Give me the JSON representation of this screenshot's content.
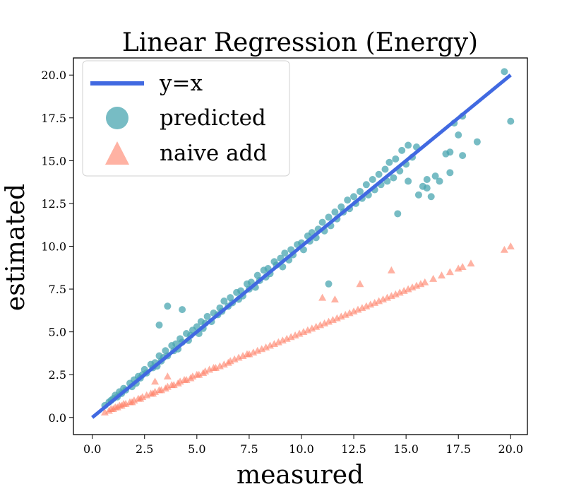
{
  "chart_data": {
    "type": "scatter",
    "title": "Linear Regression (Energy)",
    "xlabel": "measured",
    "ylabel": "estimated",
    "xlim": [
      -0.9,
      20.8
    ],
    "ylim": [
      -1.0,
      21.0
    ],
    "xticks": [
      0.0,
      2.5,
      5.0,
      7.5,
      10.0,
      12.5,
      15.0,
      17.5,
      20.0
    ],
    "xtick_labels": [
      "0.0",
      "2.5",
      "5.0",
      "7.5",
      "10.0",
      "12.5",
      "15.0",
      "17.5",
      "20.0"
    ],
    "yticks": [
      0.0,
      2.5,
      5.0,
      7.5,
      10.0,
      12.5,
      15.0,
      17.5,
      20.0
    ],
    "ytick_labels": [
      "0.0",
      "2.5",
      "5.0",
      "7.5",
      "10.0",
      "12.5",
      "15.0",
      "17.5",
      "20.0"
    ],
    "legend": {
      "position": "upper-left",
      "entries": [
        "y=x",
        "predicted",
        "naive add"
      ]
    },
    "colors": {
      "line": "#4169e1",
      "predicted": "#4aa6b0",
      "naive": "#ff7f66"
    },
    "series": [
      {
        "name": "y=x",
        "kind": "line",
        "x": [
          0.0,
          20.0
        ],
        "y": [
          0.0,
          20.0
        ]
      },
      {
        "name": "predicted",
        "kind": "scatter",
        "marker": "circle",
        "x": [
          0.6,
          0.8,
          0.9,
          1.0,
          1.1,
          1.2,
          1.3,
          1.4,
          1.5,
          1.6,
          1.8,
          1.9,
          2.0,
          2.1,
          2.2,
          2.3,
          2.4,
          2.5,
          2.6,
          2.8,
          2.9,
          3.0,
          3.1,
          3.2,
          3.3,
          3.4,
          3.5,
          3.6,
          3.8,
          3.9,
          4.0,
          4.1,
          4.2,
          4.3,
          4.5,
          4.6,
          4.7,
          4.8,
          5.0,
          5.1,
          5.2,
          5.3,
          5.4,
          5.5,
          5.7,
          5.8,
          6.0,
          6.1,
          6.2,
          6.3,
          6.5,
          6.6,
          6.7,
          6.9,
          7.0,
          7.1,
          7.2,
          7.4,
          7.5,
          7.6,
          7.8,
          7.9,
          8.0,
          8.2,
          8.3,
          8.4,
          8.5,
          8.7,
          8.8,
          9.0,
          9.1,
          9.2,
          9.4,
          9.5,
          9.6,
          9.8,
          10.0,
          10.1,
          10.3,
          10.4,
          10.5,
          10.7,
          10.8,
          11.0,
          11.1,
          11.3,
          11.4,
          11.6,
          11.7,
          11.9,
          12.0,
          12.2,
          12.3,
          12.5,
          12.6,
          12.8,
          12.9,
          13.1,
          13.2,
          13.4,
          13.5,
          13.7,
          13.8,
          14.0,
          14.1,
          14.2,
          14.4,
          14.5,
          14.7,
          14.8,
          15.0,
          15.1,
          15.3,
          15.5,
          15.6,
          15.8,
          16.0,
          16.2,
          16.4,
          16.6,
          16.9,
          17.1,
          17.3,
          17.5,
          17.7,
          18.4,
          19.7,
          20.0,
          3.2,
          3.6,
          4.3,
          11.3,
          14.6,
          15.1,
          17.1,
          17.7,
          16.0
        ],
        "y": [
          0.7,
          0.9,
          1.0,
          1.1,
          1.3,
          1.2,
          1.5,
          1.4,
          1.7,
          1.6,
          2.0,
          1.8,
          2.2,
          2.0,
          2.4,
          2.3,
          2.5,
          2.8,
          2.6,
          3.1,
          2.9,
          3.2,
          3.0,
          3.6,
          3.3,
          3.5,
          3.9,
          3.6,
          4.2,
          3.9,
          4.3,
          4.0,
          4.6,
          4.4,
          4.9,
          4.5,
          4.8,
          5.1,
          5.3,
          4.9,
          5.6,
          5.2,
          5.5,
          5.9,
          5.6,
          6.1,
          6.0,
          6.4,
          6.2,
          6.8,
          6.5,
          7.0,
          6.7,
          7.3,
          6.9,
          7.4,
          7.1,
          7.8,
          7.5,
          7.9,
          7.6,
          8.3,
          8.0,
          8.6,
          8.2,
          8.7,
          8.4,
          9.1,
          8.9,
          9.3,
          8.8,
          9.6,
          9.2,
          9.8,
          9.5,
          10.1,
          10.2,
          9.8,
          10.6,
          10.3,
          10.8,
          10.5,
          11.0,
          11.4,
          10.9,
          11.7,
          11.2,
          12.0,
          11.6,
          12.3,
          12.0,
          12.7,
          12.2,
          12.9,
          12.5,
          13.2,
          12.8,
          13.6,
          13.0,
          13.9,
          13.3,
          14.2,
          13.6,
          14.5,
          13.8,
          14.9,
          14.0,
          15.1,
          14.4,
          15.6,
          14.8,
          15.9,
          15.2,
          15.8,
          13.0,
          13.5,
          13.4,
          12.9,
          14.1,
          13.8,
          15.4,
          14.3,
          17.2,
          16.5,
          17.6,
          16.1,
          20.2,
          17.3,
          5.4,
          6.5,
          6.3,
          7.8,
          11.9,
          13.8,
          15.5,
          15.3,
          13.9
        ]
      },
      {
        "name": "naive add",
        "kind": "scatter",
        "marker": "triangle",
        "x": [
          0.6,
          0.8,
          0.9,
          1.0,
          1.1,
          1.2,
          1.3,
          1.4,
          1.5,
          1.6,
          1.8,
          1.9,
          2.0,
          2.2,
          2.3,
          2.4,
          2.6,
          2.8,
          2.9,
          3.0,
          3.2,
          3.3,
          3.5,
          3.6,
          3.8,
          3.9,
          4.1,
          4.2,
          4.4,
          4.5,
          4.7,
          4.8,
          5.0,
          5.1,
          5.3,
          5.4,
          5.6,
          5.8,
          5.9,
          6.1,
          6.3,
          6.5,
          6.6,
          6.8,
          7.0,
          7.2,
          7.4,
          7.5,
          7.7,
          7.9,
          8.1,
          8.3,
          8.5,
          8.7,
          8.9,
          9.1,
          9.3,
          9.5,
          9.7,
          9.9,
          10.1,
          10.3,
          10.5,
          10.7,
          10.9,
          11.1,
          11.3,
          11.5,
          11.7,
          11.9,
          12.1,
          12.3,
          12.5,
          12.7,
          12.9,
          13.1,
          13.3,
          13.5,
          13.7,
          13.9,
          14.1,
          14.3,
          14.5,
          14.7,
          14.9,
          15.1,
          15.3,
          15.5,
          15.7,
          15.9,
          16.3,
          16.7,
          17.1,
          17.5,
          17.7,
          18.1,
          19.7,
          20.0,
          3.0,
          3.6,
          11.0,
          11.6,
          12.8,
          14.3
        ],
        "y": [
          0.3,
          0.4,
          0.5,
          0.5,
          0.6,
          0.6,
          0.7,
          0.7,
          0.8,
          0.8,
          0.9,
          0.9,
          1.0,
          1.1,
          1.1,
          1.2,
          1.3,
          1.4,
          1.4,
          1.5,
          1.6,
          1.6,
          1.7,
          1.8,
          1.9,
          1.9,
          2.0,
          2.1,
          2.2,
          2.2,
          2.3,
          2.4,
          2.5,
          2.5,
          2.6,
          2.7,
          2.8,
          2.9,
          2.9,
          3.0,
          3.1,
          3.2,
          3.3,
          3.4,
          3.5,
          3.6,
          3.7,
          3.7,
          3.8,
          3.9,
          4.0,
          4.1,
          4.2,
          4.3,
          4.4,
          4.5,
          4.6,
          4.7,
          4.8,
          4.9,
          5.0,
          5.1,
          5.2,
          5.3,
          5.4,
          5.5,
          5.6,
          5.7,
          5.8,
          5.9,
          6.0,
          6.1,
          6.2,
          6.3,
          6.4,
          6.5,
          6.6,
          6.7,
          6.8,
          6.9,
          7.0,
          7.1,
          7.2,
          7.3,
          7.4,
          7.5,
          7.6,
          7.7,
          7.8,
          7.9,
          8.1,
          8.3,
          8.5,
          8.7,
          8.8,
          9.0,
          9.8,
          10.0,
          2.1,
          2.4,
          7.0,
          6.9,
          7.8,
          8.6
        ]
      }
    ]
  }
}
